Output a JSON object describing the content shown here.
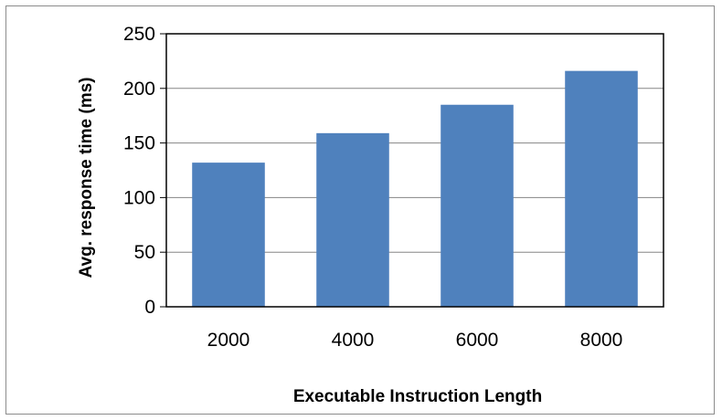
{
  "chart_data": {
    "type": "bar",
    "title": "",
    "categories": [
      "2000",
      "4000",
      "6000",
      "8000"
    ],
    "values": [
      132,
      159,
      185,
      216
    ],
    "xlabel": "Executable Instruction Length",
    "ylabel": "Avg. response time (ms)",
    "ylim": [
      0,
      250
    ],
    "yticks": [
      0,
      50,
      100,
      150,
      200,
      250
    ],
    "grid": true,
    "legend": "none",
    "bar_color": "#4f81bd",
    "grid_color": "#858585",
    "plot_border_color": "#000000"
  }
}
